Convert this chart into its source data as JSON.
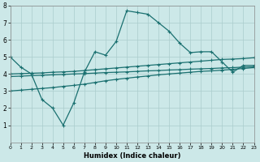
{
  "xlabel": "Humidex (Indice chaleur)",
  "x_ticks": [
    0,
    1,
    2,
    3,
    4,
    5,
    6,
    7,
    8,
    9,
    10,
    11,
    12,
    13,
    14,
    15,
    16,
    17,
    18,
    19,
    20,
    21,
    22,
    23
  ],
  "ylim": [
    0,
    8
  ],
  "xlim": [
    0,
    23
  ],
  "y_ticks": [
    1,
    2,
    3,
    4,
    5,
    6,
    7,
    8
  ],
  "bg_color": "#cce8e8",
  "grid_color": "#aacccc",
  "line_color": "#1a7070",
  "line1_x": [
    0,
    1,
    2,
    3,
    4,
    5,
    6,
    7,
    8,
    9,
    10,
    11,
    12,
    13,
    14,
    15,
    16,
    17,
    18,
    19,
    20,
    21,
    22,
    23
  ],
  "line1_y": [
    5.0,
    4.4,
    4.0,
    2.5,
    2.0,
    1.0,
    2.3,
    4.1,
    5.3,
    5.1,
    5.9,
    7.7,
    7.6,
    7.5,
    7.0,
    6.5,
    5.8,
    5.25,
    5.3,
    5.3,
    4.7,
    4.1,
    4.5,
    4.5
  ],
  "line2_x": [
    0,
    1,
    2,
    3,
    4,
    5,
    6,
    7,
    8,
    9,
    10,
    11,
    12,
    13,
    14,
    15,
    16,
    17,
    18,
    19,
    20,
    21,
    22,
    23
  ],
  "line2_y": [
    4.0,
    4.02,
    4.04,
    4.06,
    4.1,
    4.12,
    4.15,
    4.2,
    4.25,
    4.3,
    4.35,
    4.4,
    4.45,
    4.5,
    4.55,
    4.6,
    4.65,
    4.7,
    4.75,
    4.8,
    4.85,
    4.87,
    4.9,
    4.95
  ],
  "line3_x": [
    0,
    1,
    2,
    3,
    4,
    5,
    6,
    7,
    8,
    9,
    10,
    11,
    12,
    13,
    14,
    15,
    16,
    17,
    18,
    19,
    20,
    21,
    22,
    23
  ],
  "line3_y": [
    3.85,
    3.87,
    3.9,
    3.92,
    3.95,
    3.97,
    4.0,
    4.02,
    4.05,
    4.08,
    4.1,
    4.12,
    4.15,
    4.18,
    4.2,
    4.23,
    4.25,
    4.28,
    4.3,
    4.32,
    4.35,
    4.37,
    4.4,
    4.42
  ],
  "line4_x": [
    0,
    1,
    2,
    3,
    4,
    5,
    6,
    7,
    8,
    9,
    10,
    11,
    12,
    13,
    14,
    15,
    16,
    17,
    18,
    19,
    20,
    21,
    22,
    23
  ],
  "line4_y": [
    3.0,
    3.05,
    3.1,
    3.15,
    3.2,
    3.27,
    3.33,
    3.4,
    3.5,
    3.6,
    3.68,
    3.75,
    3.82,
    3.88,
    3.95,
    4.0,
    4.05,
    4.1,
    4.15,
    4.18,
    4.22,
    4.27,
    4.32,
    4.37
  ]
}
